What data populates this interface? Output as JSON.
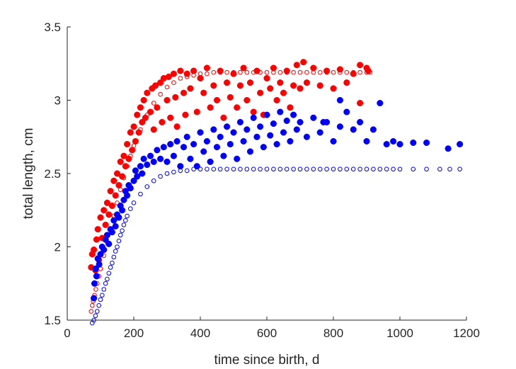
{
  "chart_data": {
    "type": "scatter",
    "xlabel": "time since birth, d",
    "ylabel": "total length, cm",
    "xlim": [
      0,
      1200
    ],
    "ylim": [
      1.5,
      3.5
    ],
    "xticks": [
      "0",
      "200",
      "400",
      "600",
      "800",
      "1000",
      "1200"
    ],
    "yticks": [
      "1.5",
      "2",
      "2.5",
      "3",
      "3.5"
    ],
    "grid": false,
    "legend": "none",
    "series": [
      {
        "key": "red_filled",
        "color": "#ff0000",
        "marker": "filled-circle",
        "points": [
          [
            72,
            1.86
          ],
          [
            75,
            1.95
          ],
          [
            80,
            1.98
          ],
          [
            85,
            1.84
          ],
          [
            88,
            2.05
          ],
          [
            92,
            2.12
          ],
          [
            95,
            1.91
          ],
          [
            100,
            2.2
          ],
          [
            105,
            2.06
          ],
          [
            110,
            2.25
          ],
          [
            115,
            2.15
          ],
          [
            120,
            2.3
          ],
          [
            125,
            2.22
          ],
          [
            130,
            2.38
          ],
          [
            135,
            2.28
          ],
          [
            140,
            2.45
          ],
          [
            145,
            2.35
          ],
          [
            150,
            2.5
          ],
          [
            155,
            2.42
          ],
          [
            160,
            2.58
          ],
          [
            165,
            2.48
          ],
          [
            170,
            2.62
          ],
          [
            175,
            2.55
          ],
          [
            180,
            2.7
          ],
          [
            185,
            2.6
          ],
          [
            190,
            2.78
          ],
          [
            195,
            2.66
          ],
          [
            200,
            2.82
          ],
          [
            205,
            2.72
          ],
          [
            210,
            2.9
          ],
          [
            215,
            2.78
          ],
          [
            220,
            2.95
          ],
          [
            225,
            2.85
          ],
          [
            230,
            3.0
          ],
          [
            235,
            2.88
          ],
          [
            240,
            3.05
          ],
          [
            250,
            2.92
          ],
          [
            255,
            3.08
          ],
          [
            260,
            2.8
          ],
          [
            265,
            3.1
          ],
          [
            270,
            2.95
          ],
          [
            280,
            3.12
          ],
          [
            285,
            2.85
          ],
          [
            290,
            3.15
          ],
          [
            300,
            3.0
          ],
          [
            305,
            3.16
          ],
          [
            310,
            2.88
          ],
          [
            320,
            3.18
          ],
          [
            325,
            3.02
          ],
          [
            330,
            2.82
          ],
          [
            340,
            3.2
          ],
          [
            350,
            3.05
          ],
          [
            355,
            2.9
          ],
          [
            360,
            3.18
          ],
          [
            370,
            3.08
          ],
          [
            380,
            3.2
          ],
          [
            390,
            2.92
          ],
          [
            400,
            3.15
          ],
          [
            410,
            3.05
          ],
          [
            420,
            3.22
          ],
          [
            430,
            2.95
          ],
          [
            440,
            3.1
          ],
          [
            450,
            3.0
          ],
          [
            460,
            3.2
          ],
          [
            470,
            2.88
          ],
          [
            480,
            3.12
          ],
          [
            490,
            3.02
          ],
          [
            500,
            3.18
          ],
          [
            510,
            2.95
          ],
          [
            520,
            3.1
          ],
          [
            530,
            3.22
          ],
          [
            540,
            3.0
          ],
          [
            550,
            3.12
          ],
          [
            560,
            2.92
          ],
          [
            570,
            3.2
          ],
          [
            580,
            3.05
          ],
          [
            590,
            2.9
          ],
          [
            600,
            3.15
          ],
          [
            610,
            3.08
          ],
          [
            620,
            3.22
          ],
          [
            630,
            3.0
          ],
          [
            640,
            3.12
          ],
          [
            650,
            3.05
          ],
          [
            660,
            3.2
          ],
          [
            670,
            2.95
          ],
          [
            680,
            3.1
          ],
          [
            690,
            3.24
          ],
          [
            700,
            3.08
          ],
          [
            710,
            3.26
          ],
          [
            720,
            3.12
          ],
          [
            740,
            3.22
          ],
          [
            760,
            3.1
          ],
          [
            780,
            3.2
          ],
          [
            800,
            3.08
          ],
          [
            820,
            3.21
          ],
          [
            840,
            3.12
          ],
          [
            860,
            3.18
          ],
          [
            880,
            3.24
          ],
          [
            900,
            3.22
          ],
          [
            905,
            3.2
          ],
          [
            880,
            2.98
          ]
        ]
      },
      {
        "key": "red_open",
        "color": "#ff0000",
        "marker": "open-circle",
        "points": [
          [
            72,
            1.56
          ],
          [
            75,
            1.6
          ],
          [
            78,
            1.63
          ],
          [
            82,
            1.67
          ],
          [
            86,
            1.71
          ],
          [
            90,
            1.75
          ],
          [
            95,
            1.8
          ],
          [
            100,
            1.85
          ],
          [
            110,
            1.94
          ],
          [
            120,
            2.03
          ],
          [
            130,
            2.12
          ],
          [
            140,
            2.21
          ],
          [
            150,
            2.3
          ],
          [
            160,
            2.39
          ],
          [
            170,
            2.47
          ],
          [
            180,
            2.55
          ],
          [
            190,
            2.62
          ],
          [
            200,
            2.69
          ],
          [
            220,
            2.8
          ],
          [
            240,
            2.9
          ],
          [
            260,
            2.98
          ],
          [
            280,
            3.04
          ],
          [
            300,
            3.09
          ],
          [
            320,
            3.12
          ],
          [
            340,
            3.15
          ],
          [
            360,
            3.16
          ],
          [
            380,
            3.17
          ],
          [
            400,
            3.18
          ],
          [
            420,
            3.18
          ],
          [
            440,
            3.19
          ],
          [
            460,
            3.19
          ],
          [
            480,
            3.19
          ],
          [
            500,
            3.19
          ],
          [
            520,
            3.19
          ],
          [
            540,
            3.19
          ],
          [
            560,
            3.19
          ],
          [
            580,
            3.19
          ],
          [
            600,
            3.19
          ],
          [
            620,
            3.19
          ],
          [
            640,
            3.19
          ],
          [
            660,
            3.19
          ],
          [
            680,
            3.19
          ],
          [
            700,
            3.19
          ],
          [
            720,
            3.19
          ],
          [
            740,
            3.19
          ],
          [
            760,
            3.19
          ],
          [
            780,
            3.19
          ],
          [
            800,
            3.19
          ],
          [
            820,
            3.19
          ],
          [
            840,
            3.19
          ],
          [
            860,
            3.19
          ],
          [
            880,
            3.19
          ],
          [
            900,
            3.19
          ],
          [
            910,
            3.19
          ]
        ]
      },
      {
        "key": "blue_filled",
        "color": "#0000ff",
        "marker": "filled-circle",
        "points": [
          [
            80,
            1.65
          ],
          [
            82,
            1.75
          ],
          [
            85,
            1.85
          ],
          [
            88,
            1.8
          ],
          [
            92,
            1.92
          ],
          [
            96,
            1.88
          ],
          [
            100,
            1.95
          ],
          [
            105,
            2.0
          ],
          [
            110,
            1.98
          ],
          [
            115,
            2.05
          ],
          [
            120,
            2.08
          ],
          [
            125,
            2.02
          ],
          [
            130,
            2.12
          ],
          [
            135,
            2.1
          ],
          [
            140,
            2.18
          ],
          [
            145,
            2.14
          ],
          [
            150,
            2.22
          ],
          [
            155,
            2.2
          ],
          [
            160,
            2.28
          ],
          [
            165,
            2.25
          ],
          [
            170,
            2.32
          ],
          [
            175,
            2.38
          ],
          [
            180,
            2.35
          ],
          [
            185,
            2.42
          ],
          [
            190,
            2.4
          ],
          [
            200,
            2.45
          ],
          [
            205,
            2.52
          ],
          [
            210,
            2.48
          ],
          [
            220,
            2.55
          ],
          [
            225,
            2.5
          ],
          [
            230,
            2.6
          ],
          [
            240,
            2.56
          ],
          [
            250,
            2.62
          ],
          [
            260,
            2.58
          ],
          [
            270,
            2.66
          ],
          [
            280,
            2.6
          ],
          [
            290,
            2.68
          ],
          [
            300,
            2.58
          ],
          [
            310,
            2.7
          ],
          [
            320,
            2.62
          ],
          [
            330,
            2.72
          ],
          [
            340,
            2.55
          ],
          [
            350,
            2.68
          ],
          [
            360,
            2.75
          ],
          [
            370,
            2.6
          ],
          [
            380,
            2.7
          ],
          [
            390,
            2.55
          ],
          [
            400,
            2.78
          ],
          [
            410,
            2.65
          ],
          [
            420,
            2.72
          ],
          [
            430,
            2.58
          ],
          [
            440,
            2.8
          ],
          [
            450,
            2.68
          ],
          [
            460,
            2.75
          ],
          [
            470,
            2.62
          ],
          [
            480,
            2.82
          ],
          [
            490,
            2.7
          ],
          [
            500,
            2.78
          ],
          [
            510,
            2.6
          ],
          [
            520,
            2.85
          ],
          [
            530,
            2.72
          ],
          [
            540,
            2.8
          ],
          [
            550,
            2.65
          ],
          [
            560,
            2.88
          ],
          [
            570,
            2.75
          ],
          [
            580,
            2.82
          ],
          [
            590,
            2.68
          ],
          [
            600,
            2.9
          ],
          [
            610,
            2.76
          ],
          [
            620,
            2.84
          ],
          [
            630,
            2.7
          ],
          [
            640,
            2.92
          ],
          [
            650,
            2.78
          ],
          [
            660,
            2.86
          ],
          [
            670,
            2.72
          ],
          [
            680,
            2.9
          ],
          [
            690,
            2.8
          ],
          [
            700,
            2.85
          ],
          [
            720,
            2.75
          ],
          [
            740,
            2.88
          ],
          [
            760,
            2.78
          ],
          [
            780,
            2.85
          ],
          [
            800,
            2.72
          ],
          [
            820,
            2.82
          ],
          [
            840,
            2.92
          ],
          [
            860,
            2.8
          ],
          [
            880,
            2.85
          ],
          [
            900,
            2.72
          ],
          [
            920,
            2.8
          ],
          [
            940,
            2.98
          ],
          [
            960,
            2.7
          ],
          [
            980,
            2.72
          ],
          [
            1000,
            2.7
          ],
          [
            1040,
            2.71
          ],
          [
            1080,
            2.71
          ],
          [
            1145,
            2.67
          ],
          [
            1180,
            2.7
          ],
          [
            820,
            3.0
          ],
          [
            770,
            2.85
          ]
        ]
      },
      {
        "key": "blue_open",
        "color": "#0000ff",
        "marker": "open-circle",
        "points": [
          [
            75,
            1.48
          ],
          [
            80,
            1.5
          ],
          [
            85,
            1.53
          ],
          [
            90,
            1.56
          ],
          [
            95,
            1.6
          ],
          [
            100,
            1.64
          ],
          [
            105,
            1.67
          ],
          [
            110,
            1.71
          ],
          [
            115,
            1.75
          ],
          [
            120,
            1.78
          ],
          [
            125,
            1.82
          ],
          [
            130,
            1.86
          ],
          [
            135,
            1.89
          ],
          [
            140,
            1.93
          ],
          [
            145,
            1.97
          ],
          [
            150,
            2.0
          ],
          [
            155,
            2.04
          ],
          [
            160,
            2.08
          ],
          [
            165,
            2.11
          ],
          [
            170,
            2.15
          ],
          [
            175,
            2.18
          ],
          [
            180,
            2.21
          ],
          [
            190,
            2.26
          ],
          [
            200,
            2.3
          ],
          [
            220,
            2.36
          ],
          [
            240,
            2.41
          ],
          [
            260,
            2.45
          ],
          [
            280,
            2.48
          ],
          [
            300,
            2.5
          ],
          [
            320,
            2.51
          ],
          [
            340,
            2.52
          ],
          [
            360,
            2.52
          ],
          [
            380,
            2.53
          ],
          [
            400,
            2.53
          ],
          [
            420,
            2.53
          ],
          [
            440,
            2.53
          ],
          [
            460,
            2.53
          ],
          [
            480,
            2.53
          ],
          [
            500,
            2.53
          ],
          [
            520,
            2.53
          ],
          [
            540,
            2.53
          ],
          [
            560,
            2.53
          ],
          [
            580,
            2.53
          ],
          [
            600,
            2.53
          ],
          [
            620,
            2.53
          ],
          [
            640,
            2.53
          ],
          [
            660,
            2.53
          ],
          [
            680,
            2.53
          ],
          [
            700,
            2.53
          ],
          [
            720,
            2.53
          ],
          [
            740,
            2.53
          ],
          [
            760,
            2.53
          ],
          [
            780,
            2.53
          ],
          [
            800,
            2.53
          ],
          [
            820,
            2.53
          ],
          [
            840,
            2.53
          ],
          [
            860,
            2.53
          ],
          [
            880,
            2.53
          ],
          [
            900,
            2.53
          ],
          [
            920,
            2.53
          ],
          [
            940,
            2.53
          ],
          [
            960,
            2.53
          ],
          [
            980,
            2.53
          ],
          [
            1000,
            2.53
          ],
          [
            1040,
            2.53
          ],
          [
            1080,
            2.53
          ],
          [
            1120,
            2.53
          ],
          [
            1150,
            2.53
          ],
          [
            1180,
            2.53
          ]
        ]
      }
    ]
  }
}
